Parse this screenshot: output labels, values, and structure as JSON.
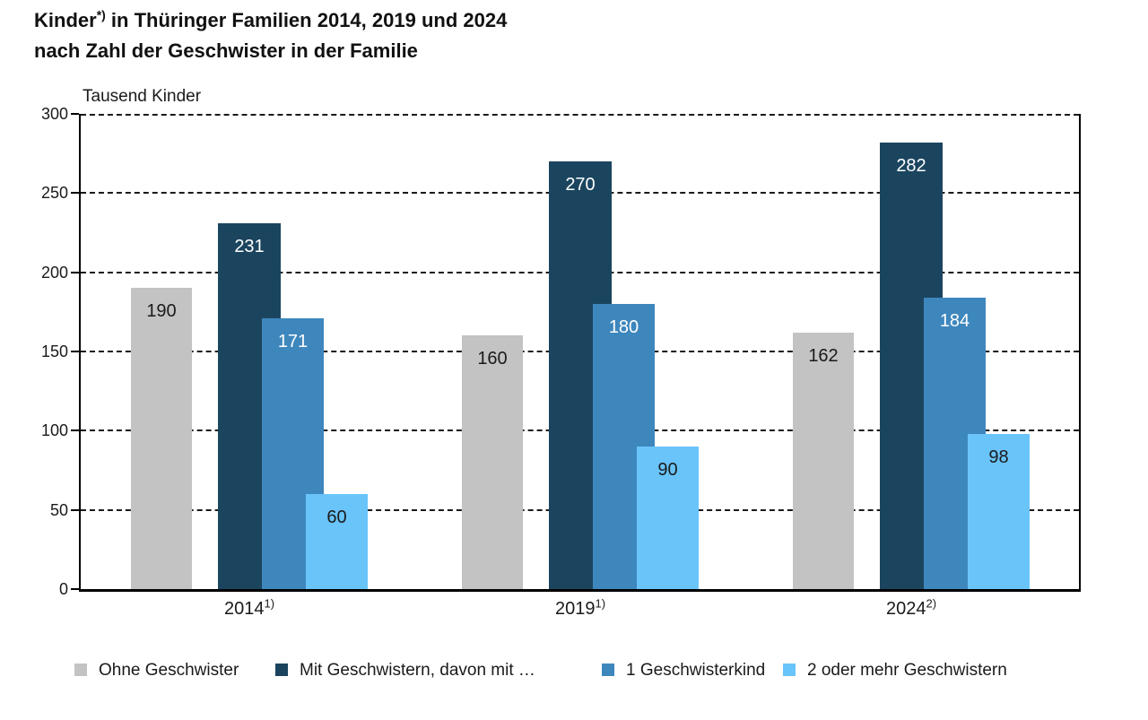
{
  "title": {
    "line1_pre": "Kinder",
    "line1_sup": "*)",
    "line1_post": " in Thüringer Familien 2014, 2019 und 2024",
    "line2": "nach Zahl der Geschwister in der Familie"
  },
  "chart_data": {
    "type": "bar",
    "title": "Kinder*) in Thüringer Familien 2014, 2019 und 2024 nach Zahl der Geschwister in der Familie",
    "xlabel": "",
    "ylabel": "Tausend Kinder",
    "ylim": [
      0,
      300
    ],
    "yticks": [
      0,
      50,
      100,
      150,
      200,
      250,
      300
    ],
    "grid": "horizontal-dashed",
    "legend_position": "bottom",
    "categories": [
      "2014",
      "2019",
      "2024"
    ],
    "category_footnotes": [
      "1)",
      "1)",
      "2)"
    ],
    "series": [
      {
        "name": "Ohne Geschwister",
        "color": "#c3c3c3",
        "label_color": "#1a1a1a",
        "values": [
          190,
          160,
          162
        ]
      },
      {
        "name": "Mit Geschwistern, davon mit …",
        "color": "#1b455f",
        "label_color": "#ffffff",
        "values": [
          231,
          270,
          282
        ]
      },
      {
        "name": "1 Geschwisterkind",
        "color": "#3e87bd",
        "label_color": "#ffffff",
        "values": [
          171,
          180,
          184
        ]
      },
      {
        "name": "2 oder mehr Geschwistern",
        "color": "#69c4fa",
        "label_color": "#1a1a1a",
        "values": [
          60,
          90,
          98
        ]
      }
    ]
  },
  "colors": {
    "axis": "#000000",
    "gridline": "#1a1a1a",
    "text": "#1a1a1a",
    "background": "#ffffff"
  }
}
